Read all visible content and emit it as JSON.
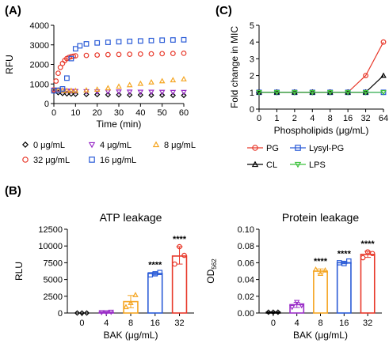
{
  "panels": {
    "A": "(A)",
    "B": "(B)",
    "C": "(C)"
  },
  "chart_data": [
    {
      "id": "A",
      "type": "scatter",
      "xlabel": "Time (min)",
      "ylabel": "RFU",
      "xlim": [
        0,
        60
      ],
      "ylim": [
        0,
        4000
      ],
      "xticks": [
        "0",
        "10",
        "20",
        "30",
        "40",
        "50",
        "60"
      ],
      "yticks": [
        "0",
        "1000",
        "2000",
        "3000",
        "4000"
      ],
      "grid": false,
      "legend_position": "bottom",
      "series": [
        {
          "name": "0 μg/mL",
          "color": "#000000",
          "marker": "diamond",
          "x": [
            0,
            2,
            4,
            6,
            8,
            10,
            15,
            20,
            25,
            30,
            35,
            40,
            45,
            50,
            55,
            60
          ],
          "y": [
            650,
            560,
            520,
            500,
            490,
            480,
            470,
            460,
            450,
            450,
            440,
            440,
            430,
            430,
            420,
            420
          ]
        },
        {
          "name": "4 μg/mL",
          "color": "#9b30c8",
          "marker": "triangle-down",
          "x": [
            0,
            2,
            4,
            6,
            8,
            10,
            15,
            20,
            25,
            30,
            35,
            40,
            45,
            50,
            55,
            60
          ],
          "y": [
            700,
            680,
            660,
            650,
            640,
            630,
            620,
            610,
            600,
            600,
            595,
            590,
            590,
            585,
            580,
            580
          ]
        },
        {
          "name": "8 μg/mL",
          "color": "#f5a623",
          "marker": "triangle-up",
          "x": [
            0,
            2,
            4,
            6,
            8,
            10,
            15,
            20,
            25,
            30,
            35,
            40,
            45,
            50,
            55,
            60
          ],
          "y": [
            700,
            680,
            670,
            660,
            660,
            660,
            680,
            720,
            790,
            870,
            950,
            1020,
            1090,
            1150,
            1200,
            1250
          ]
        },
        {
          "name": "32 μg/mL",
          "color": "#e8392b",
          "marker": "circle",
          "x": [
            0,
            1,
            2,
            3,
            4,
            5,
            6,
            7,
            8,
            9,
            10,
            15,
            20,
            25,
            30,
            35,
            40,
            45,
            50,
            55,
            60
          ],
          "y": [
            700,
            1150,
            1550,
            1850,
            2050,
            2200,
            2300,
            2360,
            2400,
            2420,
            2440,
            2460,
            2480,
            2500,
            2510,
            2520,
            2530,
            2540,
            2550,
            2560,
            2570
          ]
        },
        {
          "name": "16 μg/mL",
          "color": "#2a5bd7",
          "marker": "square",
          "x": [
            0,
            2,
            4,
            6,
            8,
            10,
            12,
            15,
            20,
            25,
            30,
            35,
            40,
            45,
            50,
            55,
            60
          ],
          "y": [
            650,
            680,
            750,
            1300,
            2300,
            2800,
            2950,
            3050,
            3100,
            3130,
            3160,
            3180,
            3200,
            3220,
            3240,
            3250,
            3260
          ]
        }
      ]
    },
    {
      "id": "C",
      "type": "line",
      "xlabel": "Phospholipids (μg/mL)",
      "ylabel": "Fold change in MIC",
      "categories": [
        "0",
        "1",
        "2",
        "4",
        "8",
        "16",
        "32",
        "64"
      ],
      "ylim": [
        0,
        5
      ],
      "yticks": [
        "0",
        "1",
        "2",
        "3",
        "4",
        "5"
      ],
      "grid": false,
      "legend_position": "bottom",
      "series": [
        {
          "name": "PG",
          "color": "#e8392b",
          "marker": "circle",
          "values": [
            1,
            1,
            1,
            1,
            1,
            1,
            2,
            4
          ]
        },
        {
          "name": "Lysyl-PG",
          "color": "#2a5bd7",
          "marker": "square",
          "values": [
            1,
            1,
            1,
            1,
            1,
            1,
            1,
            1
          ]
        },
        {
          "name": "CL",
          "color": "#000000",
          "marker": "triangle-up",
          "values": [
            1,
            1,
            1,
            1,
            1,
            1,
            1,
            2
          ]
        },
        {
          "name": "LPS",
          "color": "#3ec23e",
          "marker": "triangle-down",
          "values": [
            1,
            1,
            1,
            1,
            1,
            1,
            1,
            1
          ]
        }
      ]
    },
    {
      "id": "B1",
      "type": "bar",
      "title": "ATP leakage",
      "xlabel": "BAK (μg/mL)",
      "ylabel": "RLU",
      "categories": [
        "0",
        "4",
        "8",
        "16",
        "32"
      ],
      "values": [
        0,
        120,
        1700,
        5900,
        8500
      ],
      "points": [
        [
          0,
          0,
          0
        ],
        [
          100,
          80,
          160
        ],
        [
          900,
          1500,
          2700
        ],
        [
          5700,
          5850,
          6050
        ],
        [
          7300,
          9900,
          8600
        ]
      ],
      "colors": [
        "#000000",
        "#9b30c8",
        "#f5a623",
        "#2a5bd7",
        "#e8392b"
      ],
      "markers": [
        "diamond",
        "triangle-down",
        "triangle-up",
        "square",
        "circle"
      ],
      "significance": [
        "",
        "",
        "",
        "****",
        "****"
      ],
      "ylim": [
        0,
        12500
      ],
      "yticks": [
        "0",
        "2500",
        "5000",
        "7500",
        "10000",
        "12500"
      ]
    },
    {
      "id": "B2",
      "type": "bar",
      "title": "Protein leakage",
      "xlabel": "BAK (μg/mL)",
      "ylabel": "OD",
      "ylabel_sub": "562",
      "categories": [
        "0",
        "4",
        "8",
        "16",
        "32"
      ],
      "values": [
        0.001,
        0.01,
        0.05,
        0.06,
        0.07
      ],
      "points": [
        [
          0.001,
          0.001,
          0.001
        ],
        [
          0.007,
          0.013,
          0.009
        ],
        [
          0.052,
          0.047,
          0.051
        ],
        [
          0.06,
          0.059,
          0.062
        ],
        [
          0.066,
          0.073,
          0.071
        ]
      ],
      "colors": [
        "#000000",
        "#9b30c8",
        "#f5a623",
        "#2a5bd7",
        "#e8392b"
      ],
      "markers": [
        "diamond",
        "triangle-down",
        "triangle-up",
        "square",
        "circle"
      ],
      "significance": [
        "",
        "",
        "****",
        "****",
        "****"
      ],
      "ylim": [
        0,
        0.1
      ],
      "yticks": [
        "0.00",
        "0.02",
        "0.04",
        "0.06",
        "0.08",
        "0.10"
      ]
    }
  ]
}
